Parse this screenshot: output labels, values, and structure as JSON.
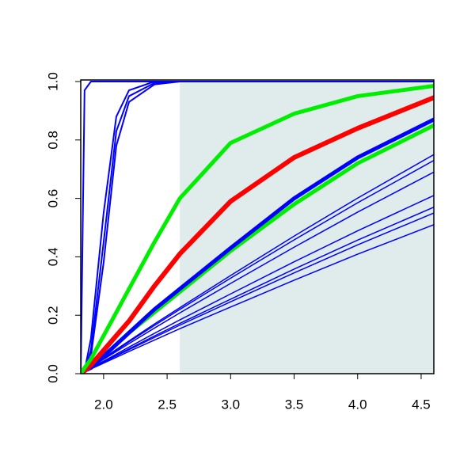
{
  "chart_data": {
    "type": "line",
    "x": [
      1.82,
      1.85,
      1.9,
      2.0,
      2.1,
      2.2,
      2.4,
      2.6,
      3.0,
      3.5,
      4.0,
      4.6
    ],
    "xlim": [
      1.82,
      4.6
    ],
    "ylim": [
      0,
      1
    ],
    "xticks": [
      {
        "value": 2.0,
        "label": "2.0"
      },
      {
        "value": 2.5,
        "label": "2.5"
      },
      {
        "value": 3.0,
        "label": "3.0"
      },
      {
        "value": 3.5,
        "label": "3.5"
      },
      {
        "value": 4.0,
        "label": "4.0"
      },
      {
        "value": 4.5,
        "label": "4.5"
      }
    ],
    "yticks": [
      {
        "value": 0.0,
        "label": "0.0"
      },
      0.2,
      0.4,
      0.6,
      0.8,
      {
        "value": 1.0,
        "label": "1.0"
      }
    ],
    "shade": {
      "from": 2.6,
      "color": "#dfeceb"
    },
    "series": [
      {
        "color": "#0000ff",
        "width": 1.5,
        "values": [
          0,
          0.01,
          0.023,
          0.052,
          0.08,
          0.109,
          0.165,
          0.22,
          0.327,
          0.458,
          0.585,
          0.73
        ]
      },
      {
        "color": "#0000ff",
        "width": 1.5,
        "values": [
          0,
          0.009,
          0.024,
          0.053,
          0.083,
          0.112,
          0.17,
          0.226,
          0.336,
          0.471,
          0.601,
          0.75
        ]
      },
      {
        "color": "#0000ff",
        "width": 1.5,
        "values": [
          0,
          0.008,
          0.022,
          0.049,
          0.076,
          0.103,
          0.156,
          0.208,
          0.309,
          0.433,
          0.553,
          0.69
        ]
      },
      {
        "color": "#0000ff",
        "width": 1.5,
        "values": [
          0,
          0.007,
          0.02,
          0.043,
          0.067,
          0.091,
          0.138,
          0.184,
          0.273,
          0.383,
          0.489,
          0.61
        ]
      },
      {
        "color": "#0000ff",
        "width": 1.5,
        "values": [
          0,
          0.007,
          0.018,
          0.04,
          0.063,
          0.085,
          0.129,
          0.172,
          0.255,
          0.358,
          0.457,
          0.57
        ]
      },
      {
        "color": "#0000ff",
        "width": 1.5,
        "values": [
          0,
          0.007,
          0.018,
          0.039,
          0.061,
          0.082,
          0.124,
          0.166,
          0.246,
          0.345,
          0.441,
          0.55
        ]
      },
      {
        "color": "#0000ff",
        "width": 1.5,
        "values": [
          0,
          0.006,
          0.016,
          0.036,
          0.056,
          0.076,
          0.115,
          0.154,
          0.228,
          0.32,
          0.409,
          0.51
        ]
      },
      {
        "color": "#0000ff",
        "width": 2,
        "values": [
          0,
          0.97,
          1,
          1,
          1,
          1,
          1,
          1,
          1,
          1,
          1,
          1
        ]
      },
      {
        "color": "#0000ff",
        "width": 2,
        "values": [
          0,
          0.01,
          0.12,
          0.55,
          0.88,
          0.97,
          1,
          1,
          1,
          1,
          1,
          1
        ]
      },
      {
        "color": "#0000ff",
        "width": 2,
        "values": [
          0,
          0.01,
          0.08,
          0.45,
          0.83,
          0.95,
          0.995,
          1,
          1,
          1,
          1,
          1
        ]
      },
      {
        "color": "#0000ff",
        "width": 2,
        "values": [
          0,
          0.005,
          0.06,
          0.38,
          0.78,
          0.93,
          0.99,
          1,
          1,
          1,
          1,
          1
        ]
      },
      {
        "color": "#00ee00",
        "width": 5,
        "values": [
          0,
          0.01,
          0.02,
          0.06,
          0.1,
          0.14,
          0.21,
          0.28,
          0.42,
          0.58,
          0.72,
          0.85
        ]
      },
      {
        "color": "#0000ff",
        "width": 5,
        "values": [
          0,
          0.01,
          0.02,
          0.06,
          0.1,
          0.14,
          0.22,
          0.29,
          0.43,
          0.6,
          0.74,
          0.87
        ]
      },
      {
        "color": "#ff0000",
        "width": 6,
        "values": [
          0,
          0.01,
          0.03,
          0.08,
          0.13,
          0.18,
          0.3,
          0.41,
          0.59,
          0.74,
          0.84,
          0.945
        ]
      },
      {
        "color": "#00ee00",
        "width": 5,
        "values": [
          0,
          0.02,
          0.05,
          0.13,
          0.21,
          0.29,
          0.45,
          0.6,
          0.79,
          0.89,
          0.95,
          0.985
        ]
      }
    ]
  }
}
